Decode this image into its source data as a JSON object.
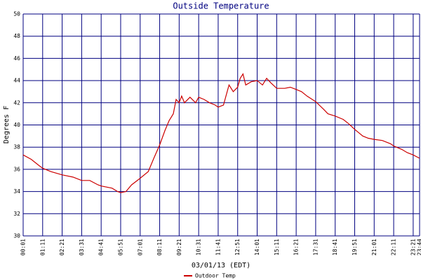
{
  "chart_data": {
    "type": "line",
    "title": "Outside Temperature",
    "x_label": "03/01/13 (EDT)",
    "y_label": "Degrees F",
    "x": [
      "00:01",
      "00:30",
      "01:00",
      "01:11",
      "01:40",
      "02:21",
      "03:00",
      "03:31",
      "04:00",
      "04:30",
      "04:41",
      "05:20",
      "05:40",
      "05:51",
      "06:10",
      "06:30",
      "07:01",
      "07:30",
      "07:50",
      "08:11",
      "08:30",
      "08:45",
      "09:00",
      "09:10",
      "09:21",
      "09:30",
      "09:40",
      "10:00",
      "10:20",
      "10:31",
      "10:50",
      "11:10",
      "11:30",
      "11:41",
      "12:00",
      "12:20",
      "12:35",
      "12:51",
      "13:00",
      "13:10",
      "13:20",
      "13:40",
      "14:01",
      "14:20",
      "14:35",
      "14:50",
      "15:11",
      "15:40",
      "16:00",
      "16:21",
      "16:40",
      "17:00",
      "17:31",
      "18:00",
      "18:15",
      "18:41",
      "19:10",
      "19:30",
      "19:51",
      "20:20",
      "20:40",
      "21:01",
      "21:30",
      "22:00",
      "22:11",
      "22:40",
      "23:00",
      "23:21",
      "23:44"
    ],
    "series": [
      {
        "name": "Outdoor Temp",
        "color": "#cc0000",
        "values": [
          37.3,
          36.9,
          36.3,
          36.1,
          35.8,
          35.5,
          35.3,
          35.0,
          35.0,
          34.6,
          34.5,
          34.3,
          34.0,
          33.9,
          34.0,
          34.6,
          35.2,
          35.8,
          37.0,
          38.2,
          39.5,
          40.4,
          41.0,
          42.3,
          42.0,
          42.6,
          42.0,
          42.5,
          42.0,
          42.5,
          42.3,
          42.0,
          41.8,
          41.6,
          41.8,
          43.6,
          43.0,
          43.4,
          44.2,
          44.6,
          43.6,
          43.9,
          44.0,
          43.6,
          44.2,
          43.8,
          43.3,
          43.3,
          43.4,
          43.2,
          43.0,
          42.6,
          42.1,
          41.4,
          41.0,
          40.8,
          40.5,
          40.1,
          39.6,
          39.0,
          38.8,
          38.7,
          38.6,
          38.3,
          38.1,
          37.8,
          37.5,
          37.3,
          37.0
        ]
      }
    ],
    "xlim": [
      "00:01",
      "23:44"
    ],
    "xticks": [
      "00:01",
      "01:11",
      "02:21",
      "03:31",
      "04:41",
      "05:51",
      "07:01",
      "08:11",
      "09:21",
      "10:31",
      "11:41",
      "12:51",
      "14:01",
      "15:11",
      "16:21",
      "17:31",
      "18:41",
      "19:51",
      "21:01",
      "22:11",
      "23:21",
      "23:44"
    ],
    "ylim": [
      30,
      50
    ],
    "yticks": [
      30,
      32,
      34,
      36,
      38,
      40,
      42,
      44,
      46,
      48,
      50
    ],
    "grid": true,
    "grid_color": "#000080"
  }
}
